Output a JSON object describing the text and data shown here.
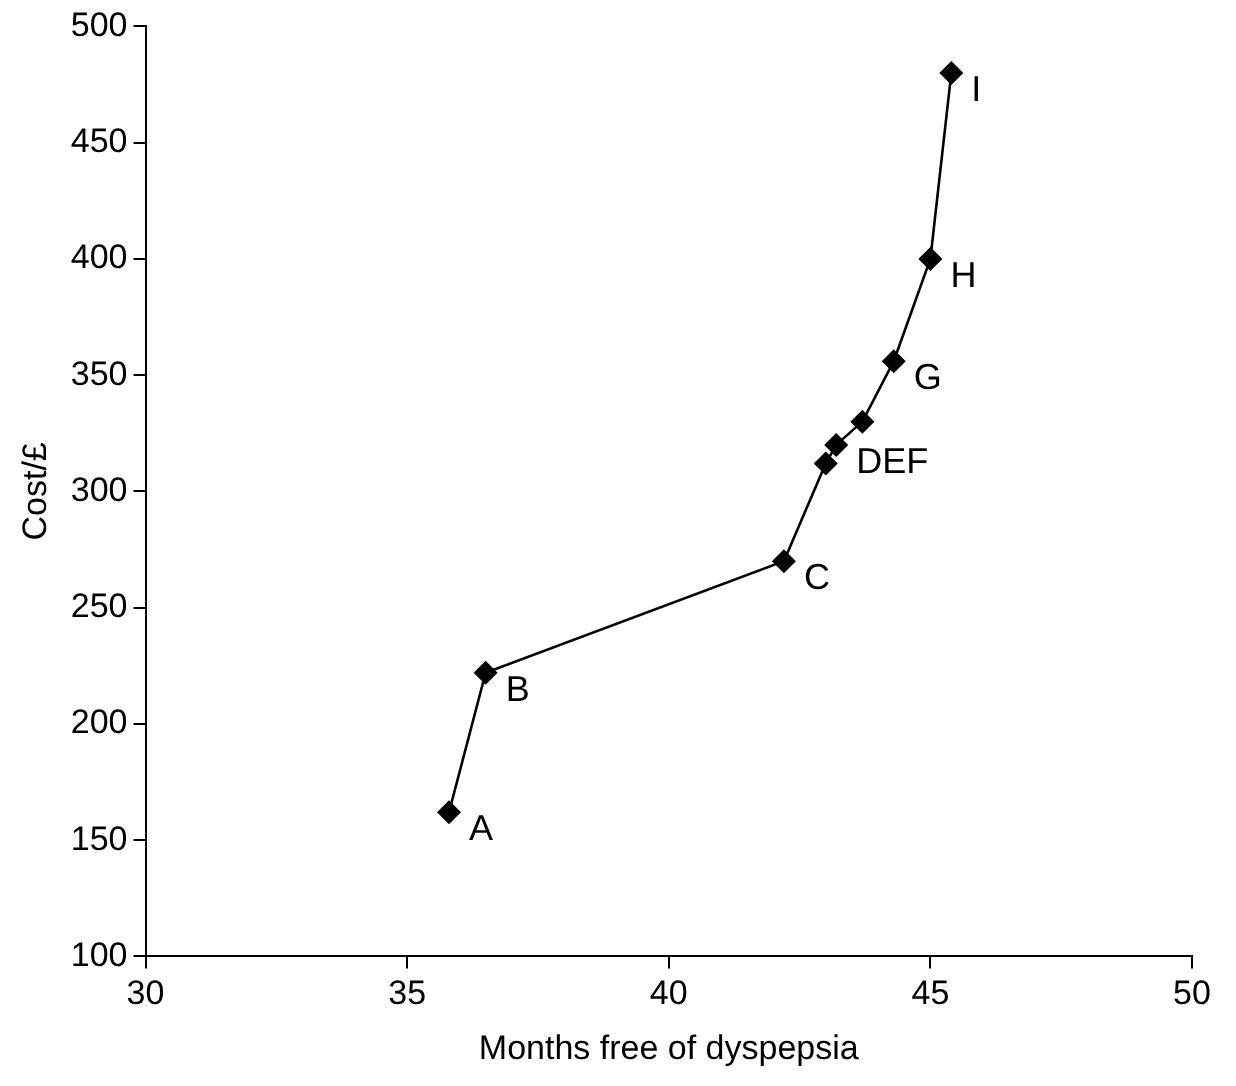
{
  "chart_data": {
    "type": "line",
    "xlabel": "Months free of dyspepsia",
    "ylabel": "Cost/£",
    "x": [
      35.8,
      36.5,
      42.2,
      43.0,
      43.2,
      43.7,
      44.3,
      45.0,
      45.4
    ],
    "series": [
      {
        "color": "#000000",
        "values": [
          162,
          222,
          270,
          312,
          320,
          330,
          356,
          400,
          480
        ]
      }
    ],
    "xlim": [
      30,
      50
    ],
    "xticks": [
      30,
      35,
      40,
      45,
      50
    ],
    "ylim": [
      100,
      500
    ],
    "yticks": [
      100,
      150,
      200,
      250,
      300,
      350,
      400,
      450,
      500
    ],
    "grid": false,
    "legend": false,
    "marker": "diamond",
    "line_style": "solid",
    "annotations": [
      {
        "text": "A",
        "x": 35.8,
        "y": 162
      },
      {
        "text": "B",
        "x": 36.5,
        "y": 222
      },
      {
        "text": "C",
        "x": 42.2,
        "y": 270
      },
      {
        "text": "DEF",
        "x": 43.2,
        "y": 320
      },
      {
        "text": "G",
        "x": 44.3,
        "y": 356
      },
      {
        "text": "H",
        "x": 45.0,
        "y": 400
      },
      {
        "text": "I",
        "x": 45.4,
        "y": 480
      }
    ]
  }
}
